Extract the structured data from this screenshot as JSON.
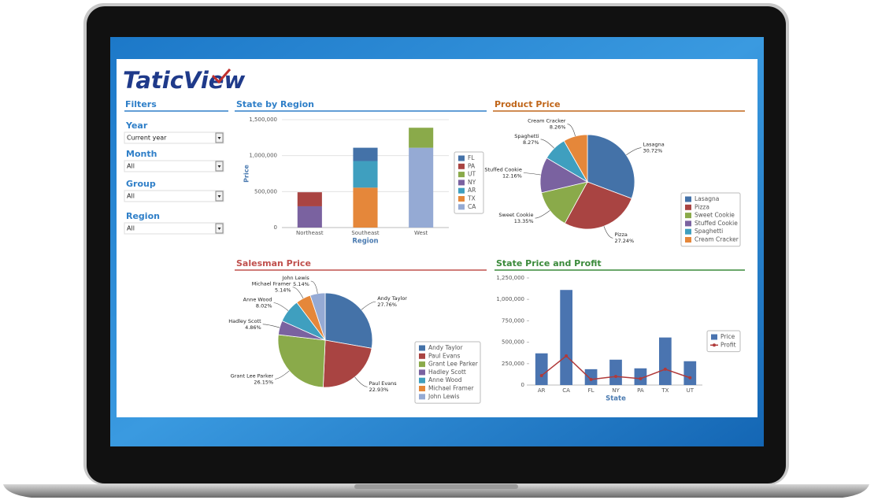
{
  "logo": "TaticView",
  "filters": {
    "title": "Filters",
    "items": [
      {
        "label": "Year",
        "value": "Current year"
      },
      {
        "label": "Month",
        "value": "All"
      },
      {
        "label": "Group",
        "value": "All"
      },
      {
        "label": "Region",
        "value": "All"
      }
    ]
  },
  "chart_data": [
    {
      "type": "stacked_bar",
      "title": "State by Region",
      "title_color": "#2f7fc8",
      "x_label": "Region",
      "y_label": "Price",
      "categories": [
        "Northeast",
        "Southeast",
        "West"
      ],
      "series": [
        {
          "name": "FL",
          "color": "#4472a8",
          "values": [
            null,
            185000,
            null
          ]
        },
        {
          "name": "PA",
          "color": "#a94442",
          "values": [
            195000,
            null,
            null
          ]
        },
        {
          "name": "UT",
          "color": "#8aaa4a",
          "values": [
            null,
            null,
            278000
          ]
        },
        {
          "name": "NY",
          "color": "#7a62a0",
          "values": [
            296000,
            null,
            null
          ]
        },
        {
          "name": "AR",
          "color": "#3f9fbf",
          "values": [
            null,
            370000,
            null
          ]
        },
        {
          "name": "TX",
          "color": "#e5873a",
          "values": [
            null,
            555000,
            null
          ]
        },
        {
          "name": "CA",
          "color": "#95aad4",
          "values": [
            null,
            null,
            1110000
          ]
        }
      ],
      "ylim": [
        0,
        1500000
      ],
      "yticks": [
        0,
        {
          "value": 500000,
          "label": "500,000"
        },
        {
          "value": 1000000,
          "label": "1,000,000"
        },
        {
          "value": 1500000,
          "label": "1,500,000"
        }
      ],
      "grid": true,
      "legend": "right"
    },
    {
      "type": "pie",
      "title": "Product Price",
      "title_color": "#c0661a",
      "categories": [
        "Lasagna",
        "Pizza",
        "Sweet Cookie",
        "Stuffed Cookie",
        "Spaghetti",
        "Cream Cracker"
      ],
      "values": [
        30.72,
        27.24,
        13.35,
        12.16,
        8.27,
        8.26
      ],
      "value_labels": [
        "30.72%",
        "27.24%",
        "13.35%",
        "12.16%",
        "8.27%",
        "8.26%"
      ],
      "colors": [
        "#4472a8",
        "#a94442",
        "#8aaa4a",
        "#7a62a0",
        "#3f9fbf",
        "#e5873a"
      ],
      "legend": "right"
    },
    {
      "type": "pie",
      "title": "Salesman Price",
      "title_color": "#c0504d",
      "categories": [
        "Andy Taylor",
        "Paul Evans",
        "Grant Lee Parker",
        "Hadley Scott",
        "Anne Wood",
        "Michael Framer",
        "John Lewis"
      ],
      "values": [
        27.76,
        22.93,
        26.15,
        4.86,
        8.02,
        5.14,
        5.14
      ],
      "value_labels": [
        "27.76%",
        "22.93%",
        "26.15%",
        "4.86%",
        "8.02%",
        "5.14%",
        "5.14%"
      ],
      "colors": [
        "#4472a8",
        "#a94442",
        "#8aaa4a",
        "#7a62a0",
        "#3f9fbf",
        "#e5873a",
        "#95aad4"
      ],
      "legend": "right"
    },
    {
      "type": "bar_line",
      "title": "State Price and Profit",
      "title_color": "#3a8a3a",
      "x_label": "State",
      "categories": [
        "AR",
        "CA",
        "FL",
        "NY",
        "PA",
        "TX",
        "UT"
      ],
      "series": [
        {
          "name": "Price",
          "color": "#4a74b0",
          "mark": "bar",
          "values": [
            370000,
            1110000,
            185000,
            296000,
            195000,
            555000,
            278000
          ]
        },
        {
          "name": "Profit",
          "color": "#b03a3a",
          "mark": "line",
          "values": [
            110000,
            340000,
            65000,
            100000,
            75000,
            185000,
            85000
          ]
        }
      ],
      "ylim": [
        0,
        1250000
      ],
      "yticks": [
        0,
        {
          "value": 250000,
          "label": "250,000"
        },
        {
          "value": 500000,
          "label": "500,000"
        },
        {
          "value": 750000,
          "label": "750,000"
        },
        {
          "value": 1000000,
          "label": "1,000,000"
        },
        {
          "value": 1250000,
          "label": "1,250,000"
        }
      ],
      "grid": false,
      "legend": "right"
    }
  ]
}
